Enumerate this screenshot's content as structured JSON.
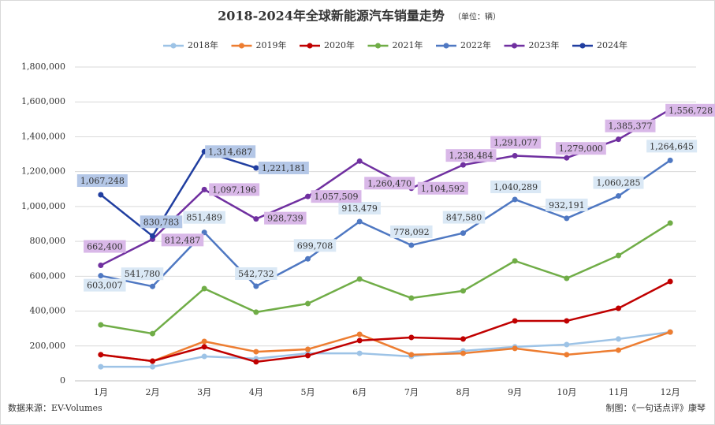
{
  "chart_data": {
    "type": "line",
    "title": "2018-2024年全球新能源汽车销量走势",
    "subtitle": "（单位：辆）",
    "source": "数据来源：EV-Volumes",
    "credit": "制图：《一句话点评》康琴",
    "categories": [
      "1月",
      "2月",
      "3月",
      "4月",
      "5月",
      "6月",
      "7月",
      "8月",
      "9月",
      "10月",
      "11月",
      "12月"
    ],
    "ylim": [
      0,
      1800000
    ],
    "yticks": [
      0,
      {
        "value": 200000,
        "label": "200,000"
      },
      {
        "value": 400000,
        "label": "400,000"
      },
      {
        "value": 600000,
        "label": "600,000"
      },
      {
        "value": 800000,
        "label": "800,000"
      },
      {
        "value": 1000000,
        "label": "1,000,000"
      },
      {
        "value": 1200000,
        "label": "1,200,000"
      },
      {
        "value": 1400000,
        "label": "1,400,000"
      },
      {
        "value": 1600000,
        "label": "1,600,000"
      },
      {
        "value": 1800000,
        "label": "1,800,000"
      }
    ],
    "grid": true,
    "legend": "top",
    "series": [
      {
        "name": "2018年",
        "color": "#9dc3e6",
        "values": [
          81000,
          81000,
          140000,
          127000,
          158000,
          158000,
          140000,
          172000,
          195000,
          208000,
          240000,
          280000
        ]
      },
      {
        "name": "2019年",
        "color": "#ed7d31",
        "values": [
          150000,
          113000,
          226000,
          167000,
          181000,
          267000,
          150000,
          158000,
          186000,
          150000,
          176000,
          280000
        ]
      },
      {
        "name": "2020年",
        "color": "#c00000",
        "values": [
          150000,
          113000,
          195000,
          109000,
          145000,
          231000,
          249000,
          240000,
          344000,
          344000,
          416000,
          570000
        ]
      },
      {
        "name": "2021年",
        "color": "#70ad47",
        "values": [
          321000,
          271000,
          529000,
          394000,
          443000,
          584000,
          475000,
          516000,
          688000,
          588000,
          719000,
          905000
        ]
      },
      {
        "name": "2022年",
        "color": "#4f78c2",
        "label_bg": "#dae8f5",
        "values": [
          603007,
          541780,
          851489,
          542732,
          699708,
          913479,
          778092,
          847580,
          1040289,
          932191,
          1060285,
          1264645
        ],
        "value_labels": [
          "603,007",
          "541,780",
          "851,489",
          "542,732",
          "699,708",
          "913,479",
          "778,092",
          "847,580",
          "1,040,289",
          "932,191",
          "1,060,285",
          "1,264,645"
        ]
      },
      {
        "name": "2023年",
        "color": "#7030a0",
        "label_bg": "#d9b8e8",
        "values": [
          662400,
          812487,
          1097196,
          928739,
          1057509,
          1260470,
          1104592,
          1238484,
          1291077,
          1279000,
          1385377,
          1556728
        ],
        "value_labels": [
          "662,400",
          "812,487",
          "1,097,196",
          "928,739",
          "1,057,509",
          "1,260,470",
          "1,104,592",
          "1,238,484",
          "1,291,077",
          "1,279,000",
          "1,385,377",
          "1,556,728"
        ]
      },
      {
        "name": "2024年",
        "color": "#203ea0",
        "label_bg": "#b4c7e7",
        "values": [
          1067248,
          830783,
          1314687,
          1221181,
          null,
          null,
          null,
          null,
          null,
          null,
          null,
          null
        ],
        "value_labels": [
          "1,067,248",
          "830,783",
          "1,314,687",
          "1,221,181",
          null,
          null,
          null,
          null,
          null,
          null,
          null,
          null
        ]
      }
    ]
  }
}
